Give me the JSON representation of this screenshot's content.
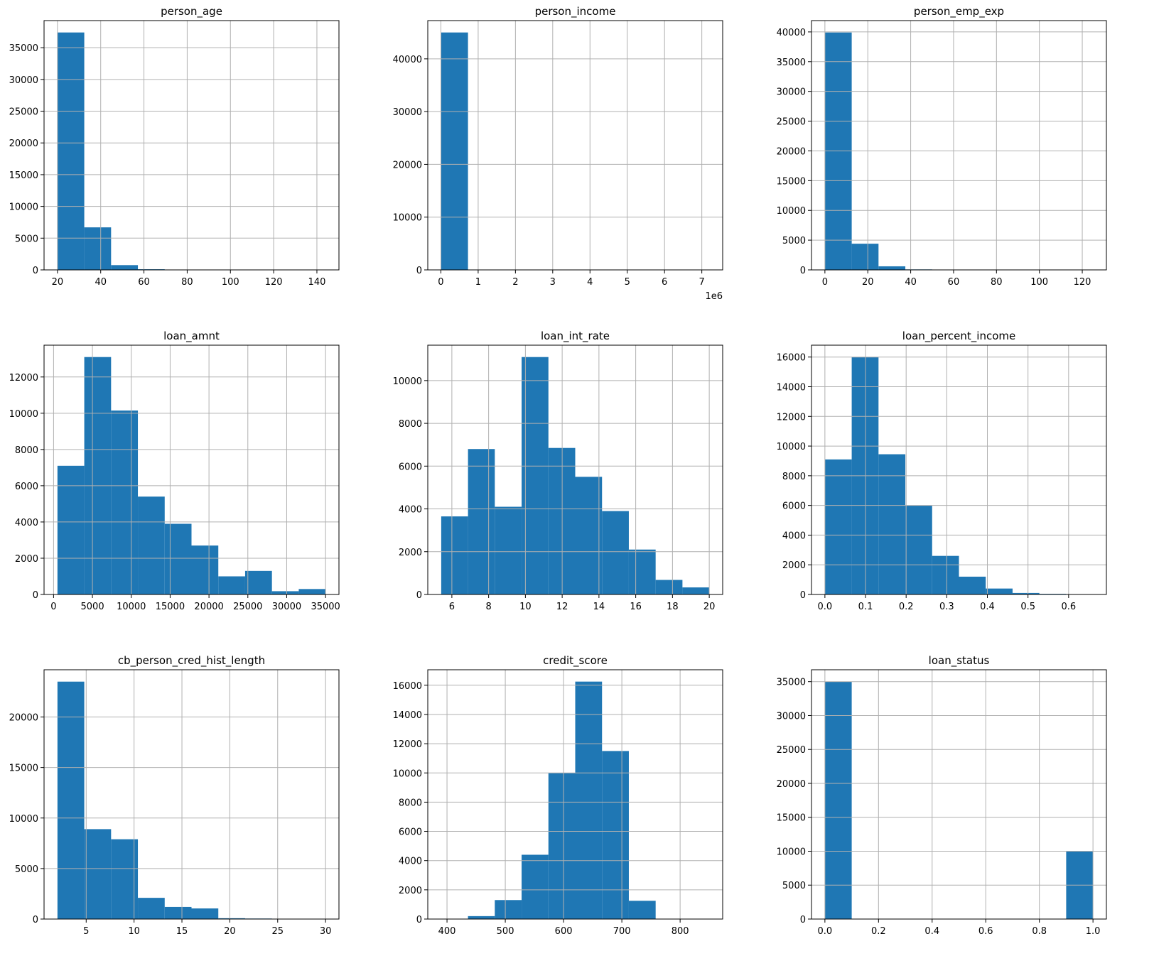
{
  "chart_data": [
    {
      "type": "bar",
      "title": "person_age",
      "range": [
        20,
        144
      ],
      "bins": 10,
      "values": [
        37400,
        6700,
        750,
        100,
        20,
        5,
        3,
        2,
        1,
        2
      ],
      "xlim": [
        13.8,
        150.2
      ],
      "ylim": [
        0,
        39270
      ],
      "xticks": [
        20,
        40,
        60,
        80,
        100,
        120,
        140
      ],
      "xtick_labels": [
        "20",
        "40",
        "60",
        "80",
        "100",
        "120",
        "140"
      ],
      "yticks": [
        0,
        5000,
        10000,
        15000,
        20000,
        25000,
        30000,
        35000
      ],
      "ytick_labels": [
        "0",
        "5000",
        "10000",
        "15000",
        "20000",
        "25000",
        "30000",
        "35000"
      ],
      "offset_text": "",
      "grid": true,
      "color": "#1f77b4"
    },
    {
      "type": "bar",
      "title": "person_income",
      "range": [
        8000,
        7200000
      ],
      "bins": 10,
      "values": [
        45000,
        20,
        5,
        2,
        1,
        1,
        0,
        0,
        0,
        1
      ],
      "xlim": [
        -351600,
        7559600
      ],
      "ylim": [
        0,
        47250
      ],
      "xticks": [
        0,
        1000000,
        2000000,
        3000000,
        4000000,
        5000000,
        6000000,
        7000000
      ],
      "xtick_labels": [
        "0",
        "1",
        "2",
        "3",
        "4",
        "5",
        "6",
        "7"
      ],
      "yticks": [
        0,
        10000,
        20000,
        30000,
        40000
      ],
      "ytick_labels": [
        "0",
        "10000",
        "20000",
        "30000",
        "40000"
      ],
      "offset_text": "1e6",
      "grid": true,
      "color": "#1f77b4"
    },
    {
      "type": "bar",
      "title": "person_emp_exp",
      "range": [
        0,
        125
      ],
      "bins": 10,
      "values": [
        39900,
        4400,
        600,
        80,
        10,
        5,
        3,
        1,
        1,
        2
      ],
      "xlim": [
        -6.25,
        131.25
      ],
      "ylim": [
        0,
        41900
      ],
      "xticks": [
        0,
        20,
        40,
        60,
        80,
        100,
        120
      ],
      "xtick_labels": [
        "0",
        "20",
        "40",
        "60",
        "80",
        "100",
        "120"
      ],
      "yticks": [
        0,
        5000,
        10000,
        15000,
        20000,
        25000,
        30000,
        35000,
        40000
      ],
      "ytick_labels": [
        "0",
        "5000",
        "10000",
        "15000",
        "20000",
        "25000",
        "30000",
        "35000",
        "40000"
      ],
      "offset_text": "",
      "grid": true,
      "color": "#1f77b4"
    },
    {
      "type": "bar",
      "title": "loan_amnt",
      "range": [
        500,
        35000
      ],
      "bins": 10,
      "values": [
        7100,
        13100,
        10150,
        5400,
        3900,
        2700,
        1000,
        1300,
        180,
        300
      ],
      "xlim": [
        -1225,
        36725
      ],
      "ylim": [
        0,
        13755
      ],
      "xticks": [
        0,
        5000,
        10000,
        15000,
        20000,
        25000,
        30000,
        35000
      ],
      "xtick_labels": [
        "0",
        "5000",
        "10000",
        "15000",
        "20000",
        "25000",
        "30000",
        "35000"
      ],
      "yticks": [
        0,
        2000,
        4000,
        6000,
        8000,
        10000,
        12000
      ],
      "ytick_labels": [
        "0",
        "2000",
        "4000",
        "6000",
        "8000",
        "10000",
        "12000"
      ],
      "offset_text": "",
      "grid": true,
      "color": "#1f77b4"
    },
    {
      "type": "bar",
      "title": "loan_int_rate",
      "range": [
        5.42,
        20
      ],
      "bins": 10,
      "values": [
        3650,
        6800,
        4100,
        11100,
        6850,
        5500,
        3900,
        2100,
        680,
        330
      ],
      "xlim": [
        4.69,
        20.73
      ],
      "ylim": [
        0,
        11655
      ],
      "xticks": [
        6,
        8,
        10,
        12,
        14,
        16,
        18,
        20
      ],
      "xtick_labels": [
        "6",
        "8",
        "10",
        "12",
        "14",
        "16",
        "18",
        "20"
      ],
      "yticks": [
        0,
        2000,
        4000,
        6000,
        8000,
        10000
      ],
      "ytick_labels": [
        "0",
        "2000",
        "4000",
        "6000",
        "8000",
        "10000"
      ],
      "offset_text": "",
      "grid": true,
      "color": "#1f77b4"
    },
    {
      "type": "bar",
      "title": "loan_percent_income",
      "range": [
        0,
        0.66
      ],
      "bins": 10,
      "values": [
        9100,
        16000,
        9450,
        6000,
        2600,
        1200,
        400,
        100,
        40,
        20
      ],
      "xlim": [
        -0.033,
        0.693
      ],
      "ylim": [
        0,
        16800
      ],
      "xticks": [
        0,
        0.1,
        0.2,
        0.3,
        0.4,
        0.5,
        0.6
      ],
      "xtick_labels": [
        "0.0",
        "0.1",
        "0.2",
        "0.3",
        "0.4",
        "0.5",
        "0.6"
      ],
      "yticks": [
        0,
        2000,
        4000,
        6000,
        8000,
        10000,
        12000,
        14000,
        16000
      ],
      "ytick_labels": [
        "0",
        "2000",
        "4000",
        "6000",
        "8000",
        "10000",
        "12000",
        "14000",
        "16000"
      ],
      "offset_text": "",
      "grid": true,
      "color": "#1f77b4"
    },
    {
      "type": "bar",
      "title": "cb_person_cred_hist_length",
      "range": [
        2,
        30
      ],
      "bins": 10,
      "values": [
        23500,
        8900,
        7900,
        2100,
        1200,
        1050,
        80,
        50,
        30,
        20
      ],
      "xlim": [
        0.6,
        31.4
      ],
      "ylim": [
        0,
        24675
      ],
      "xticks": [
        5,
        10,
        15,
        20,
        25,
        30
      ],
      "xtick_labels": [
        "5",
        "10",
        "15",
        "20",
        "25",
        "30"
      ],
      "yticks": [
        0,
        5000,
        10000,
        15000,
        20000
      ],
      "ytick_labels": [
        "0",
        "5000",
        "10000",
        "15000",
        "20000"
      ],
      "offset_text": "",
      "grid": true,
      "color": "#1f77b4"
    },
    {
      "type": "bar",
      "title": "credit_score",
      "range": [
        390,
        850
      ],
      "bins": 10,
      "values": [
        10,
        200,
        1300,
        4400,
        10000,
        16250,
        11500,
        1250,
        5,
        3
      ],
      "xlim": [
        367,
        873
      ],
      "ylim": [
        0,
        17060
      ],
      "xticks": [
        400,
        500,
        600,
        700,
        800
      ],
      "xtick_labels": [
        "400",
        "500",
        "600",
        "700",
        "800"
      ],
      "yticks": [
        0,
        2000,
        4000,
        6000,
        8000,
        10000,
        12000,
        14000,
        16000
      ],
      "ytick_labels": [
        "0",
        "2000",
        "4000",
        "6000",
        "8000",
        "10000",
        "12000",
        "14000",
        "16000"
      ],
      "offset_text": "",
      "grid": true,
      "color": "#1f77b4"
    },
    {
      "type": "bar",
      "title": "loan_status",
      "range": [
        0,
        1
      ],
      "bins": 10,
      "values": [
        35000,
        0,
        0,
        0,
        0,
        0,
        0,
        0,
        0,
        10000
      ],
      "xlim": [
        -0.05,
        1.05
      ],
      "ylim": [
        0,
        36750
      ],
      "xticks": [
        0,
        0.2,
        0.4,
        0.6,
        0.8,
        1.0
      ],
      "xtick_labels": [
        "0.0",
        "0.2",
        "0.4",
        "0.6",
        "0.8",
        "1.0"
      ],
      "yticks": [
        0,
        5000,
        10000,
        15000,
        20000,
        25000,
        30000,
        35000
      ],
      "ytick_labels": [
        "0",
        "5000",
        "10000",
        "15000",
        "20000",
        "25000",
        "30000",
        "35000"
      ],
      "offset_text": "",
      "grid": true,
      "color": "#1f77b4"
    }
  ]
}
